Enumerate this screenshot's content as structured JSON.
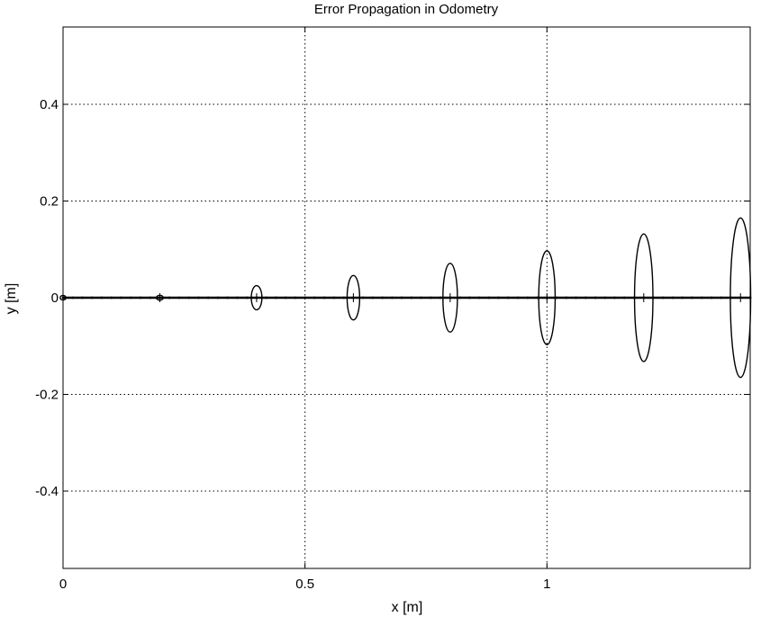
{
  "chart_data": {
    "type": "line",
    "title": "Error Propagation in Odometry",
    "xlabel": "x [m]",
    "ylabel": "y [m]",
    "xlim": [
      0,
      1.42
    ],
    "ylim": [
      -0.56,
      0.56
    ],
    "grid": true,
    "x_ticks": [
      {
        "value": 0,
        "label": "0"
      },
      {
        "value": 0.5,
        "label": "0.5"
      },
      {
        "value": 1,
        "label": "1"
      }
    ],
    "y_ticks": [
      {
        "value": 0.4,
        "label": "0.4"
      },
      {
        "value": 0.2,
        "label": "0.2"
      },
      {
        "value": 0,
        "label": "0"
      },
      {
        "value": -0.2,
        "label": "-0.2"
      },
      {
        "value": -0.4,
        "label": "-0.4"
      }
    ],
    "path": {
      "x": [
        0,
        1.42
      ],
      "y": [
        0,
        0
      ]
    },
    "ellipses": [
      {
        "x": 0.0,
        "y": 0,
        "semi_x": 0.006,
        "semi_y": 0.004
      },
      {
        "x": 0.2,
        "y": 0,
        "semi_x": 0.007,
        "semi_y": 0.005
      },
      {
        "x": 0.4,
        "y": 0,
        "semi_x": 0.011,
        "semi_y": 0.025
      },
      {
        "x": 0.6,
        "y": 0,
        "semi_x": 0.013,
        "semi_y": 0.046
      },
      {
        "x": 0.8,
        "y": 0,
        "semi_x": 0.015,
        "semi_y": 0.071
      },
      {
        "x": 1.0,
        "y": 0,
        "semi_x": 0.017,
        "semi_y": 0.097
      },
      {
        "x": 1.2,
        "y": 0,
        "semi_x": 0.019,
        "semi_y": 0.132
      },
      {
        "x": 1.4,
        "y": 0,
        "semi_x": 0.021,
        "semi_y": 0.165
      }
    ]
  }
}
